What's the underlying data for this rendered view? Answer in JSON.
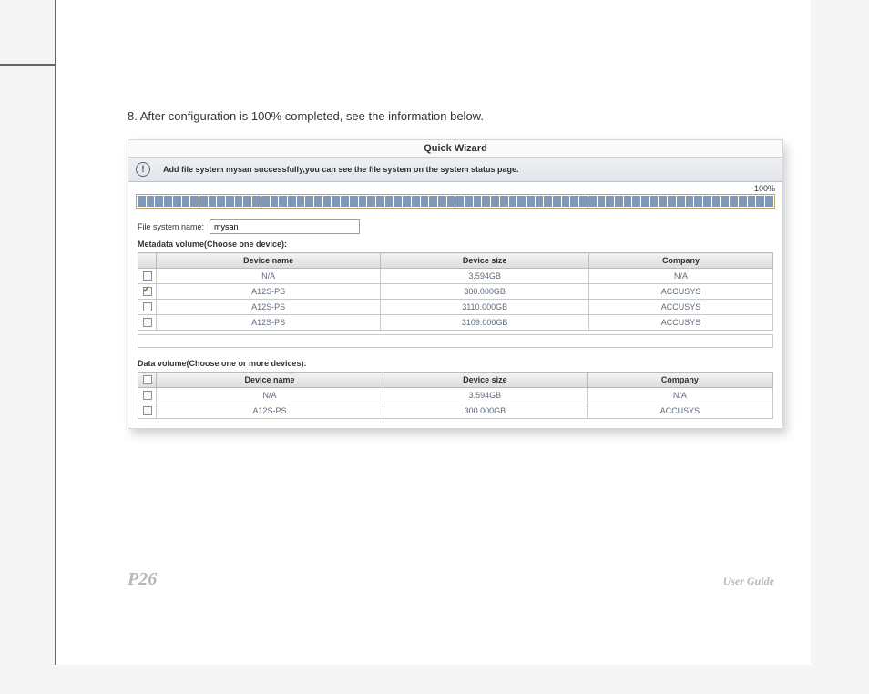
{
  "step": {
    "text": "8. After configuration is 100% completed, see the information below."
  },
  "wizard": {
    "title": "Quick Wizard",
    "notice": "Add file system mysan successfully,you can see the file system on the system status page.",
    "progress_label": "100%",
    "progress_segments": 72,
    "fs_name_label": "File system name:",
    "fs_name_value": "mysan"
  },
  "meta": {
    "caption": "Metadata volume(Choose one device):",
    "headers": {
      "name": "Device name",
      "size": "Device size",
      "company": "Company"
    },
    "rows": [
      {
        "checked": false,
        "name": "N/A",
        "size": "3.594GB",
        "company": "N/A"
      },
      {
        "checked": true,
        "name": "A12S-PS",
        "size": "300.000GB",
        "company": "ACCUSYS"
      },
      {
        "checked": false,
        "name": "A12S-PS",
        "size": "3110.000GB",
        "company": "ACCUSYS"
      },
      {
        "checked": false,
        "name": "A12S-PS",
        "size": "3109.000GB",
        "company": "ACCUSYS"
      }
    ]
  },
  "data": {
    "caption": "Data volume(Choose one or more devices):",
    "headers": {
      "name": "Device name",
      "size": "Device size",
      "company": "Company"
    },
    "rows": [
      {
        "checked": false,
        "name": "N/A",
        "size": "3.594GB",
        "company": "N/A"
      },
      {
        "checked": false,
        "name": "A12S-PS",
        "size": "300.000GB",
        "company": "ACCUSYS"
      }
    ]
  },
  "footer": {
    "page": "P26",
    "guide": "User Guide"
  },
  "colors": {
    "segment": "#7f98b8",
    "bar_border": "#c6a654",
    "header_grad_top": "#f3f3f3",
    "header_grad_bot": "#dcdcdc",
    "cell_text": "#5c6a7a",
    "page_border": "#666666"
  }
}
